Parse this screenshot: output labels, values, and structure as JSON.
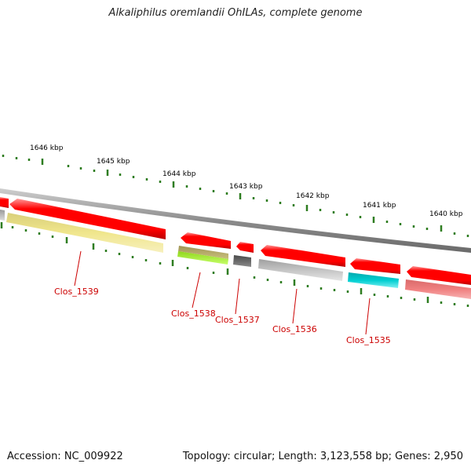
{
  "title": "Alkaliphilus oremlandii OhILAs, complete genome",
  "footer": {
    "accession": "Accession: NC_009922",
    "topology": "Topology: circular; Length: 3,123,558 bp; Genes: 2,950"
  },
  "ruler": [
    {
      "label": "1646 kbp"
    },
    {
      "label": "1645 kbp"
    },
    {
      "label": "1644 kbp"
    },
    {
      "label": "1643 kbp"
    },
    {
      "label": "1642 kbp"
    },
    {
      "label": "1641 kbp"
    },
    {
      "label": "1640 kbp"
    }
  ],
  "features": [
    {
      "name": "left-edge-red",
      "strand": "forward",
      "color": "#ff0000"
    },
    {
      "name": "clos-1539-cds",
      "strand": "forward",
      "color": "#ff0000"
    },
    {
      "name": "clos-1538-cds",
      "strand": "forward",
      "color": "#ff0000"
    },
    {
      "name": "clos-1537-cds",
      "strand": "forward",
      "color": "#ff0000"
    },
    {
      "name": "clos-1536-cds",
      "strand": "forward",
      "color": "#ff0000"
    },
    {
      "name": "clos-1535-cds",
      "strand": "forward",
      "color": "#ff0000"
    },
    {
      "name": "right-edge-red",
      "strand": "forward",
      "color": "#ff0000"
    },
    {
      "name": "left-edge-grey",
      "strand": "category",
      "color": "#b8b8b8"
    },
    {
      "name": "clos-1539-cat",
      "strand": "category",
      "color": "#f0e68c"
    },
    {
      "name": "clos-1538-cat-a",
      "strand": "category",
      "color": "#bdb76b"
    },
    {
      "name": "clos-1538-cat-b",
      "strand": "category",
      "color": "#adff2f"
    },
    {
      "name": "clos-1537-cat",
      "strand": "category",
      "color": "#696969"
    },
    {
      "name": "clos-1536-cat",
      "strand": "category",
      "color": "#c0c0c0"
    },
    {
      "name": "clos-1535-cat",
      "strand": "category",
      "color": "#00ced1"
    },
    {
      "name": "right-edge-cat",
      "strand": "category",
      "color": "#f08080"
    }
  ],
  "gene_labels": [
    {
      "text": "Clos_1539"
    },
    {
      "text": "Clos_1538"
    },
    {
      "text": "Clos_1537"
    },
    {
      "text": "Clos_1536"
    },
    {
      "text": "Clos_1535"
    }
  ],
  "colors": {
    "backbone": "#8c8c8c",
    "tick": "#2e7d20",
    "label": "#cc0000"
  }
}
